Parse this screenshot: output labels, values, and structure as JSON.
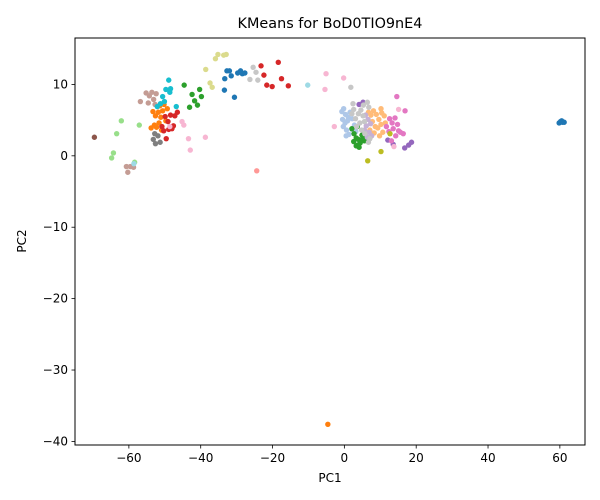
{
  "chart_data": {
    "type": "scatter",
    "title": "KMeans for BoD0TIO9nE4",
    "xlabel": "PC1",
    "ylabel": "PC2",
    "xlim": [
      -75,
      67
    ],
    "ylim": [
      -40.5,
      16.5
    ],
    "xticks": [
      -60,
      -40,
      -20,
      0,
      20,
      40,
      60
    ],
    "yticks": [
      -40,
      -30,
      -20,
      -10,
      0,
      10
    ],
    "grid": false,
    "legend": "none",
    "series": [
      {
        "color": "#1f77b4",
        "points": [
          [
            -33.4,
            9.2
          ],
          [
            -32.7,
            11.9
          ],
          [
            -32,
            11.9
          ],
          [
            -31.5,
            11.2
          ],
          [
            -30.6,
            8.2
          ],
          [
            -29.7,
            11.6
          ],
          [
            -28.9,
            11.9
          ],
          [
            -28.4,
            11.5
          ],
          [
            -27.7,
            11.6
          ],
          [
            -33.3,
            10.8
          ],
          [
            59.8,
            4.6
          ],
          [
            60.2,
            4.8
          ],
          [
            60.7,
            4.7
          ],
          [
            61.2,
            4.7
          ],
          [
            60.5,
            4.9
          ]
        ]
      },
      {
        "color": "#aec7e8",
        "points": [
          [
            -0.7,
            6.2
          ],
          [
            -0.2,
            6.6
          ],
          [
            0.3,
            5.8
          ],
          [
            -0.5,
            5.1
          ],
          [
            0.2,
            4.6
          ],
          [
            0.9,
            4.9
          ],
          [
            -0.3,
            4.1
          ],
          [
            0.6,
            3.6
          ],
          [
            1.1,
            5.4
          ],
          [
            1.6,
            6.1
          ],
          [
            2.2,
            5.2
          ],
          [
            2.8,
            4.3
          ],
          [
            2.1,
            3.7
          ],
          [
            3.2,
            3.4
          ],
          [
            1.3,
            3
          ],
          [
            0.5,
            2.8
          ]
        ]
      },
      {
        "color": "#ff7f0e",
        "points": [
          [
            -53.3,
            6.2
          ],
          [
            -52.6,
            5.6
          ],
          [
            -51.8,
            6.1
          ],
          [
            -51.1,
            5.4
          ],
          [
            -50.6,
            6.3
          ],
          [
            -52.9,
            4.3
          ],
          [
            -52.3,
            4
          ],
          [
            -51.6,
            4.6
          ],
          [
            -50.9,
            3.6
          ],
          [
            -53.8,
            3.9
          ],
          [
            -50.2,
            7.2
          ],
          [
            -51.4,
            7
          ],
          [
            -49.7,
            4.9
          ],
          [
            -49.3,
            6.6
          ],
          [
            -4.6,
            -37.6
          ]
        ]
      },
      {
        "color": "#ffbb78",
        "points": [
          [
            6.7,
            6.1
          ],
          [
            7.4,
            5.7
          ],
          [
            8.1,
            6.3
          ],
          [
            8.9,
            5.8
          ],
          [
            9.6,
            5.1
          ],
          [
            10.4,
            6
          ],
          [
            11.1,
            5.6
          ],
          [
            7.8,
            4.8
          ],
          [
            8.6,
            4.1
          ],
          [
            9.3,
            3.9
          ],
          [
            10.2,
            4.4
          ],
          [
            7.1,
            3.6
          ],
          [
            8.3,
            3.2
          ],
          [
            10.7,
            3.3
          ],
          [
            11.4,
            4.6
          ],
          [
            9.8,
            2.8
          ],
          [
            10.2,
            6.6
          ]
        ]
      },
      {
        "color": "#2ca02c",
        "points": [
          [
            -44.6,
            9.9
          ],
          [
            -43.1,
            6.8
          ],
          [
            -42.4,
            8.6
          ],
          [
            -41.7,
            7.7
          ],
          [
            -40.3,
            9.3
          ],
          [
            -40.9,
            7.1
          ],
          [
            -39.8,
            8.3
          ],
          [
            2.1,
            3.8
          ],
          [
            2.7,
            3.1
          ],
          [
            3.3,
            2.5
          ],
          [
            2.6,
            2
          ],
          [
            3.9,
            2.3
          ],
          [
            4.4,
            1.8
          ],
          [
            3.7,
            1.5
          ],
          [
            4.9,
            2.9
          ],
          [
            5.6,
            2.1
          ],
          [
            6.2,
            2.6
          ],
          [
            4.1,
            1.2
          ],
          [
            3.3,
            1.4
          ],
          [
            5.1,
            2.4
          ],
          [
            3.6,
            4.1
          ]
        ]
      },
      {
        "color": "#98df8a",
        "points": [
          [
            -62.1,
            4.9
          ],
          [
            -63.4,
            3.1
          ],
          [
            -64.3,
            0.4
          ],
          [
            -64.8,
            -0.3
          ],
          [
            -58.4,
            -0.9
          ],
          [
            -57.1,
            4.3
          ]
        ]
      },
      {
        "color": "#d62728",
        "points": [
          [
            -49.9,
            5.5
          ],
          [
            -49.1,
            4.8
          ],
          [
            -48.4,
            5.7
          ],
          [
            -47.6,
            4.2
          ],
          [
            -48.9,
            3.7
          ],
          [
            -47.2,
            5.6
          ],
          [
            -50.3,
            3.5
          ],
          [
            -48,
            3.8
          ],
          [
            -49.6,
            2.4
          ],
          [
            -46.5,
            6.1
          ],
          [
            -50.8,
            4.1
          ],
          [
            -21.6,
            9.9
          ],
          [
            -20.1,
            9.7
          ],
          [
            -18.4,
            13.1
          ],
          [
            -17.5,
            10.8
          ],
          [
            -15.6,
            9.8
          ],
          [
            -23.2,
            12.6
          ],
          [
            -22.4,
            11.3
          ]
        ]
      },
      {
        "color": "#ff9896",
        "points": [
          [
            -24.4,
            -2.1
          ]
        ]
      },
      {
        "color": "#9467bd",
        "points": [
          [
            4.1,
            7.2
          ],
          [
            5.2,
            7.5
          ],
          [
            12.1,
            2.2
          ],
          [
            13.6,
            1.6
          ],
          [
            16.8,
            1.1
          ],
          [
            17.9,
            1.5
          ],
          [
            18.7,
            1.9
          ]
        ]
      },
      {
        "color": "#c5b0d5",
        "points": [
          [
            5.9,
            5.7
          ],
          [
            6.6,
            5.1
          ],
          [
            7.3,
            4.5
          ],
          [
            6.1,
            4.2
          ],
          [
            5.6,
            3.6
          ],
          [
            6.9,
            3.3
          ],
          [
            7.6,
            2.8
          ],
          [
            6.4,
            2.6
          ]
        ]
      },
      {
        "color": "#8c564b",
        "points": [
          [
            -69.6,
            2.6
          ]
        ]
      },
      {
        "color": "#c49c94",
        "points": [
          [
            -55.2,
            8.8
          ],
          [
            -54.3,
            8.4
          ],
          [
            -53.6,
            8.9
          ],
          [
            -52.4,
            8.7
          ],
          [
            -53.1,
            7.9
          ],
          [
            -54.6,
            7.4
          ],
          [
            -52.7,
            7.2
          ],
          [
            -56.8,
            7.6
          ],
          [
            -60.7,
            -1.5
          ],
          [
            -60.3,
            -2.3
          ],
          [
            -59.6,
            -1.5
          ],
          [
            -58.7,
            -1.6
          ]
        ]
      },
      {
        "color": "#e377c2",
        "points": [
          [
            12.6,
            5.2
          ],
          [
            13.3,
            4.6
          ],
          [
            14.1,
            5.3
          ],
          [
            14.8,
            4.4
          ],
          [
            13.6,
            3.8
          ],
          [
            12.4,
            3.4
          ],
          [
            14.3,
            2.8
          ],
          [
            15.6,
            3.3
          ],
          [
            16.4,
            3.1
          ],
          [
            15.1,
            3.5
          ],
          [
            13.1,
            2.1
          ],
          [
            16.9,
            6.3
          ],
          [
            14.6,
            8.3
          ],
          [
            11.7,
            4.1
          ]
        ]
      },
      {
        "color": "#f7b6d2",
        "points": [
          [
            -48.6,
            4.1
          ],
          [
            -45.2,
            4.8
          ],
          [
            -44.7,
            4.3
          ],
          [
            -43.4,
            2.4
          ],
          [
            -38.7,
            2.6
          ],
          [
            -42.9,
            0.8
          ],
          [
            -5.1,
            11.5
          ],
          [
            -0.2,
            10.9
          ],
          [
            -5.4,
            9.3
          ],
          [
            -2.8,
            4.1
          ],
          [
            13.8,
            1.3
          ],
          [
            15.1,
            6.5
          ]
        ]
      },
      {
        "color": "#7f7f7f",
        "points": [
          [
            -52.8,
            3.1
          ],
          [
            -53.2,
            2.3
          ],
          [
            -52.6,
            1.7
          ],
          [
            -51.9,
            2.8
          ],
          [
            -51.3,
            1.9
          ]
        ]
      },
      {
        "color": "#c7c7c7",
        "points": [
          [
            -25.4,
            12.4
          ],
          [
            -26.3,
            10.7
          ],
          [
            -24.1,
            10.6
          ],
          [
            -24.6,
            11.7
          ],
          [
            1.8,
            9.6
          ],
          [
            2.4,
            7.3
          ],
          [
            2.6,
            6.5
          ],
          [
            3.9,
            5.9
          ],
          [
            4.6,
            6.4
          ],
          [
            3.1,
            5.2
          ],
          [
            5.2,
            5.6
          ],
          [
            4.3,
            4.6
          ],
          [
            5.6,
            4.8
          ],
          [
            3.4,
            4.1
          ],
          [
            4.8,
            3.6
          ],
          [
            5.7,
            3.1
          ],
          [
            6.4,
            7.5
          ],
          [
            6.8,
            6.8
          ],
          [
            5.3,
            7.1
          ],
          [
            7.1,
            2.4
          ],
          [
            6.7,
            1.9
          ],
          [
            2.1,
            5.9
          ]
        ]
      },
      {
        "color": "#bcbd22",
        "points": [
          [
            6.5,
            -0.7
          ],
          [
            10.2,
            0.6
          ],
          [
            12.7,
            3.1
          ]
        ]
      },
      {
        "color": "#dbdb8d",
        "points": [
          [
            -35.9,
            13.6
          ],
          [
            -35.2,
            14.2
          ],
          [
            -33.6,
            14.1
          ],
          [
            -32.9,
            14.2
          ],
          [
            -38.6,
            12.1
          ],
          [
            -36.8,
            9.6
          ],
          [
            -37.4,
            10.2
          ]
        ]
      },
      {
        "color": "#17becf",
        "points": [
          [
            -48.9,
            10.6
          ],
          [
            -48.4,
            9.4
          ],
          [
            -48.6,
            8.9
          ],
          [
            -50.6,
            8.3
          ],
          [
            -50.1,
            7.6
          ],
          [
            -51.2,
            7.3
          ],
          [
            -46.8,
            6.9
          ],
          [
            -49.7,
            9.3
          ],
          [
            -52.1,
            6.9
          ]
        ]
      },
      {
        "color": "#9edae5",
        "points": [
          [
            -58.6,
            -1.1
          ],
          [
            -10.2,
            9.9
          ]
        ]
      }
    ]
  }
}
